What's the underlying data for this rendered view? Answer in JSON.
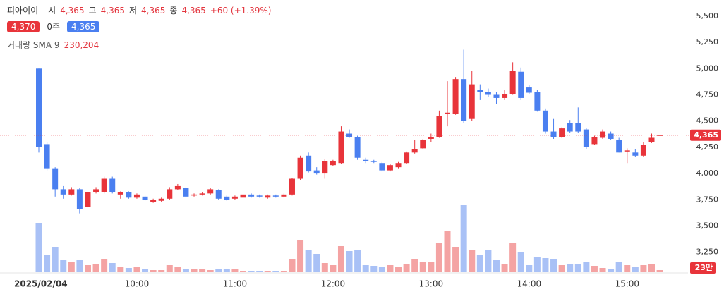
{
  "chart_data": {
    "type": "candlestick",
    "header": {
      "name": "피아이이",
      "fields": [
        {
          "key": "시",
          "value": "4,365"
        },
        {
          "key": "고",
          "value": "4,365"
        },
        {
          "key": "저",
          "value": "4,365"
        },
        {
          "key": "종",
          "value": "4,365"
        }
      ],
      "change": "+60 (+1.39%)",
      "ask": "4,370",
      "qty": "0주",
      "bid": "4,365",
      "volume_label": "거래량 SMA 9",
      "volume_value": "230,204"
    },
    "up_color": "#e8343a",
    "down_color": "#4a7ff0",
    "volume_up_color": "#f4a3a3",
    "volume_down_color": "#a9c1f6",
    "categories": [
      "2025/02/04",
      null,
      null,
      null,
      null,
      null,
      null,
      null,
      null,
      null,
      null,
      null,
      "10:00",
      null,
      null,
      null,
      null,
      null,
      null,
      null,
      null,
      null,
      null,
      null,
      "11:00",
      null,
      null,
      null,
      null,
      null,
      null,
      null,
      null,
      null,
      null,
      null,
      "12:00",
      null,
      null,
      null,
      null,
      null,
      null,
      null,
      null,
      null,
      null,
      null,
      "13:00",
      null,
      null,
      null,
      null,
      null,
      null,
      null,
      null,
      null,
      null,
      null,
      "14:00",
      null,
      null,
      null,
      null,
      null,
      null,
      null,
      null,
      null,
      null,
      null,
      "15:00",
      null,
      null,
      null,
      null
    ],
    "ohlc": [
      [
        5000,
        5000,
        4200,
        4250
      ],
      [
        4280,
        4300,
        4030,
        4050
      ],
      [
        4050,
        4060,
        3780,
        3850
      ],
      [
        3850,
        3880,
        3760,
        3800
      ],
      [
        3800,
        3870,
        3790,
        3850
      ],
      [
        3850,
        3860,
        3620,
        3660
      ],
      [
        3680,
        3830,
        3670,
        3820
      ],
      [
        3820,
        3870,
        3810,
        3850
      ],
      [
        3820,
        3970,
        3810,
        3950
      ],
      [
        3950,
        3970,
        3810,
        3820
      ],
      [
        3800,
        3830,
        3760,
        3820
      ],
      [
        3820,
        3830,
        3760,
        3770
      ],
      [
        3770,
        3810,
        3760,
        3800
      ],
      [
        3780,
        3790,
        3740,
        3750
      ],
      [
        3730,
        3760,
        3720,
        3750
      ],
      [
        3740,
        3770,
        3730,
        3760
      ],
      [
        3760,
        3870,
        3750,
        3850
      ],
      [
        3850,
        3900,
        3840,
        3880
      ],
      [
        3860,
        3870,
        3770,
        3780
      ],
      [
        3790,
        3810,
        3780,
        3800
      ],
      [
        3800,
        3820,
        3790,
        3810
      ],
      [
        3810,
        3860,
        3800,
        3850
      ],
      [
        3840,
        3850,
        3750,
        3760
      ],
      [
        3780,
        3790,
        3740,
        3750
      ],
      [
        3760,
        3790,
        3750,
        3780
      ],
      [
        3770,
        3810,
        3760,
        3800
      ],
      [
        3800,
        3810,
        3770,
        3780
      ],
      [
        3790,
        3800,
        3770,
        3780
      ],
      [
        3770,
        3800,
        3760,
        3790
      ],
      [
        3790,
        3800,
        3770,
        3780
      ],
      [
        3780,
        3810,
        3770,
        3800
      ],
      [
        3800,
        3960,
        3790,
        3950
      ],
      [
        3950,
        4170,
        3940,
        4150
      ],
      [
        4170,
        4200,
        4010,
        4020
      ],
      [
        4030,
        4060,
        3990,
        4000
      ],
      [
        4000,
        4140,
        3950,
        4120
      ],
      [
        4080,
        4130,
        4070,
        4120
      ],
      [
        4100,
        4450,
        4090,
        4400
      ],
      [
        4380,
        4420,
        4340,
        4350
      ],
      [
        4350,
        4360,
        4130,
        4150
      ],
      [
        4130,
        4150,
        4100,
        4120
      ],
      [
        4120,
        4130,
        4100,
        4110
      ],
      [
        4100,
        4110,
        4020,
        4030
      ],
      [
        4030,
        4090,
        4020,
        4080
      ],
      [
        4060,
        4110,
        4050,
        4100
      ],
      [
        4100,
        4210,
        4090,
        4200
      ],
      [
        4200,
        4320,
        4190,
        4230
      ],
      [
        4240,
        4330,
        4230,
        4320
      ],
      [
        4330,
        4380,
        4300,
        4350
      ],
      [
        4350,
        4600,
        4340,
        4550
      ],
      [
        4570,
        4880,
        4450,
        4580
      ],
      [
        4570,
        4920,
        4560,
        4900
      ],
      [
        4900,
        5180,
        4480,
        4500
      ],
      [
        4520,
        4980,
        4500,
        4850
      ],
      [
        4800,
        4850,
        4700,
        4780
      ],
      [
        4780,
        4810,
        4730,
        4750
      ],
      [
        4750,
        4780,
        4660,
        4720
      ],
      [
        4720,
        4800,
        4700,
        4760
      ],
      [
        4760,
        5060,
        4750,
        4980
      ],
      [
        4970,
        5010,
        4700,
        4720
      ],
      [
        4820,
        4840,
        4760,
        4770
      ],
      [
        4780,
        4800,
        4590,
        4600
      ],
      [
        4600,
        4620,
        4380,
        4400
      ],
      [
        4400,
        4520,
        4330,
        4350
      ],
      [
        4350,
        4440,
        4340,
        4430
      ],
      [
        4480,
        4510,
        4390,
        4400
      ],
      [
        4480,
        4630,
        4390,
        4400
      ],
      [
        4420,
        4430,
        4230,
        4250
      ],
      [
        4280,
        4360,
        4270,
        4350
      ],
      [
        4340,
        4420,
        4330,
        4400
      ],
      [
        4380,
        4400,
        4320,
        4330
      ],
      [
        4320,
        4340,
        4200,
        4200
      ],
      [
        4210,
        4240,
        4100,
        4220
      ],
      [
        4200,
        4230,
        4160,
        4170
      ],
      [
        4170,
        4300,
        4160,
        4270
      ],
      [
        4300,
        4380,
        4290,
        4340
      ],
      [
        4365,
        4370,
        4365,
        4365
      ]
    ],
    "volume": [
      690000,
      240000,
      360000,
      170000,
      150000,
      170000,
      100000,
      120000,
      180000,
      130000,
      80000,
      60000,
      70000,
      50000,
      30000,
      30000,
      100000,
      80000,
      50000,
      50000,
      40000,
      30000,
      50000,
      40000,
      40000,
      20000,
      20000,
      20000,
      20000,
      20000,
      20000,
      190000,
      460000,
      320000,
      260000,
      130000,
      100000,
      370000,
      300000,
      320000,
      100000,
      90000,
      80000,
      100000,
      70000,
      110000,
      180000,
      150000,
      150000,
      420000,
      590000,
      350000,
      950000,
      320000,
      250000,
      310000,
      170000,
      110000,
      420000,
      280000,
      100000,
      210000,
      200000,
      180000,
      100000,
      110000,
      120000,
      150000,
      90000,
      60000,
      50000,
      140000,
      100000,
      70000,
      100000,
      110000,
      30000
    ],
    "ylim": [
      3100,
      5600
    ],
    "yticks": [
      {
        "value": 3250,
        "label": "3,250"
      },
      {
        "value": 3500,
        "label": "3,500"
      },
      {
        "value": 3750,
        "label": "3,750"
      },
      {
        "value": 4000,
        "label": "4,000"
      },
      {
        "value": 4250,
        "label": "4,250"
      },
      {
        "value": 4500,
        "label": "4,500"
      },
      {
        "value": 4750,
        "label": "4,750"
      },
      {
        "value": 5000,
        "label": "5,000"
      },
      {
        "value": 5250,
        "label": "5,250"
      },
      {
        "value": 5500,
        "label": "5,500"
      }
    ],
    "price_line": {
      "value": 4365,
      "label": "4,365"
    },
    "volume_badge": "23만"
  }
}
